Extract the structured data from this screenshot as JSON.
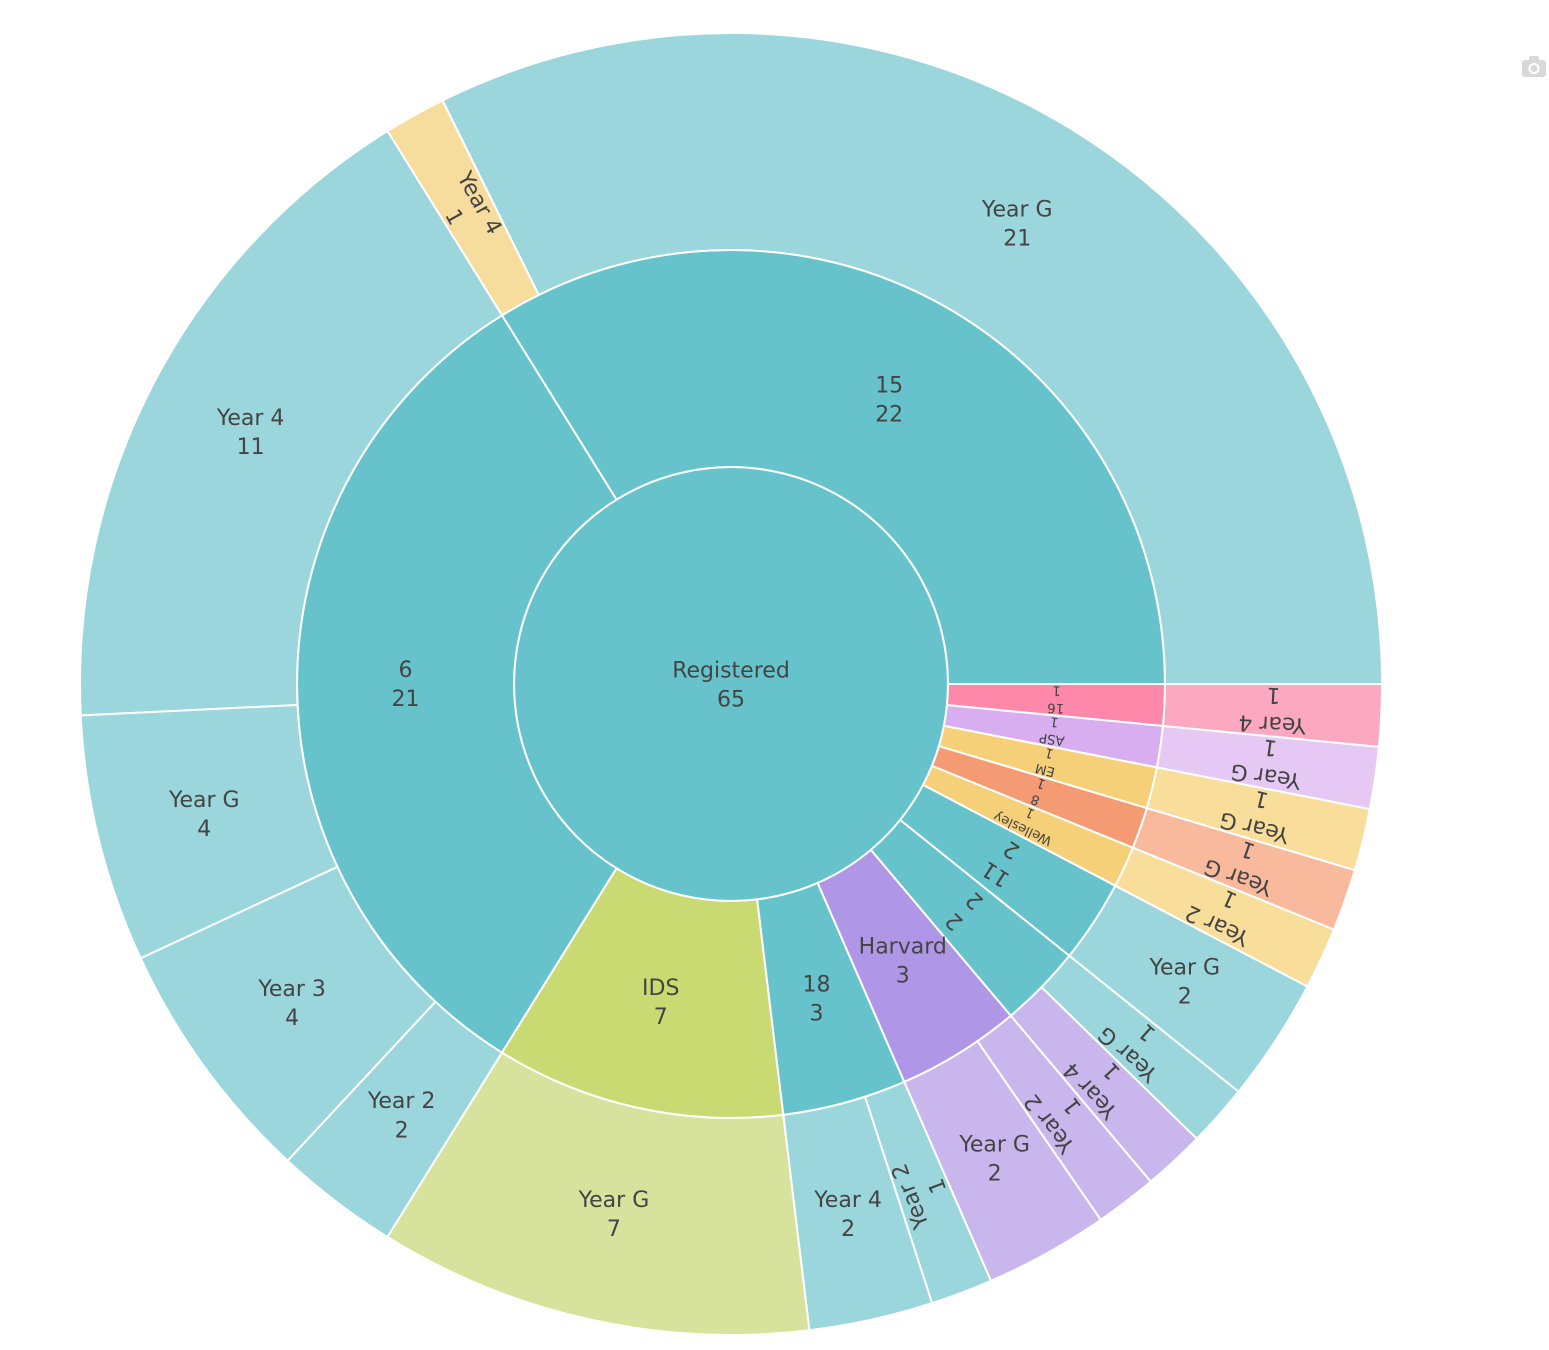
{
  "chart_data": {
    "type": "sunburst",
    "root": {
      "label": "Registered",
      "value": 65,
      "color": "#67c3cb",
      "children": [
        {
          "label": "15",
          "value": 22,
          "color": "#67c3cb",
          "children": [
            {
              "label": "Year G",
              "value": 21,
              "color": "#9ad6db"
            },
            {
              "label": "Year 4",
              "value": 1,
              "color": "#f7dd9d",
              "override_color": true
            }
          ]
        },
        {
          "label": "6",
          "value": 21,
          "color": "#67c3cb",
          "children": [
            {
              "label": "Year 4",
              "value": 11,
              "color": "#9ad6db"
            },
            {
              "label": "Year G",
              "value": 4,
              "color": "#9ad6db"
            },
            {
              "label": "Year 3",
              "value": 4,
              "color": "#9ad6db"
            },
            {
              "label": "Year 2",
              "value": 2,
              "color": "#9ad6db"
            }
          ]
        },
        {
          "label": "IDS",
          "value": 7,
          "color": "#c9da72",
          "children": [
            {
              "label": "Year G",
              "value": 7,
              "color": "#d7e39c"
            }
          ]
        },
        {
          "label": "18",
          "value": 3,
          "color": "#67c3cb",
          "children": [
            {
              "label": "Year 4",
              "value": 2,
              "color": "#9ad6db"
            },
            {
              "label": "Year 2",
              "value": 1,
              "color": "#9ad6db"
            }
          ]
        },
        {
          "label": "Harvard",
          "value": 3,
          "color": "#b096e6",
          "children": [
            {
              "label": "Year G",
              "value": 2,
              "color": "#c8b6ed"
            },
            {
              "label": "Year 2",
              "value": 1,
              "color": "#c8b6ed"
            }
          ]
        },
        {
          "label": "2",
          "value": 2,
          "color": "#67c3cb",
          "children": [
            {
              "label": "Year 4",
              "value": 1,
              "color": "#c8b6ed",
              "override_color": true
            },
            {
              "label": "Year G",
              "value": 1,
              "color": "#9ad6db"
            }
          ]
        },
        {
          "label": "11",
          "value": 2,
          "color": "#67c3cb",
          "children": [
            {
              "label": "Year G",
              "value": 2,
              "color": "#9ad6db"
            }
          ]
        },
        {
          "label": "Wellesley",
          "value": 1,
          "color": "#f6d078",
          "children": [
            {
              "label": "Year 2",
              "value": 1,
              "color": "#f8dd9b"
            }
          ]
        },
        {
          "label": "8",
          "value": 1,
          "color": "#f59b73",
          "children": [
            {
              "label": "Year G",
              "value": 1,
              "color": "#f8b99c"
            }
          ]
        },
        {
          "label": "EM",
          "value": 1,
          "color": "#f6d078",
          "children": [
            {
              "label": "Year G",
              "value": 1,
              "color": "#f8dd9b"
            }
          ]
        },
        {
          "label": "ASP",
          "value": 1,
          "color": "#d9aef0",
          "children": [
            {
              "label": "Year G",
              "value": 1,
              "color": "#e5c8f4"
            }
          ]
        },
        {
          "label": "16",
          "value": 1,
          "color": "#fd88a9",
          "children": [
            {
              "label": "Year 4",
              "value": 1,
              "color": "#fda8c1"
            }
          ]
        }
      ]
    }
  },
  "modebar": {
    "icon": "camera-icon",
    "color": "#d8d8d8"
  }
}
